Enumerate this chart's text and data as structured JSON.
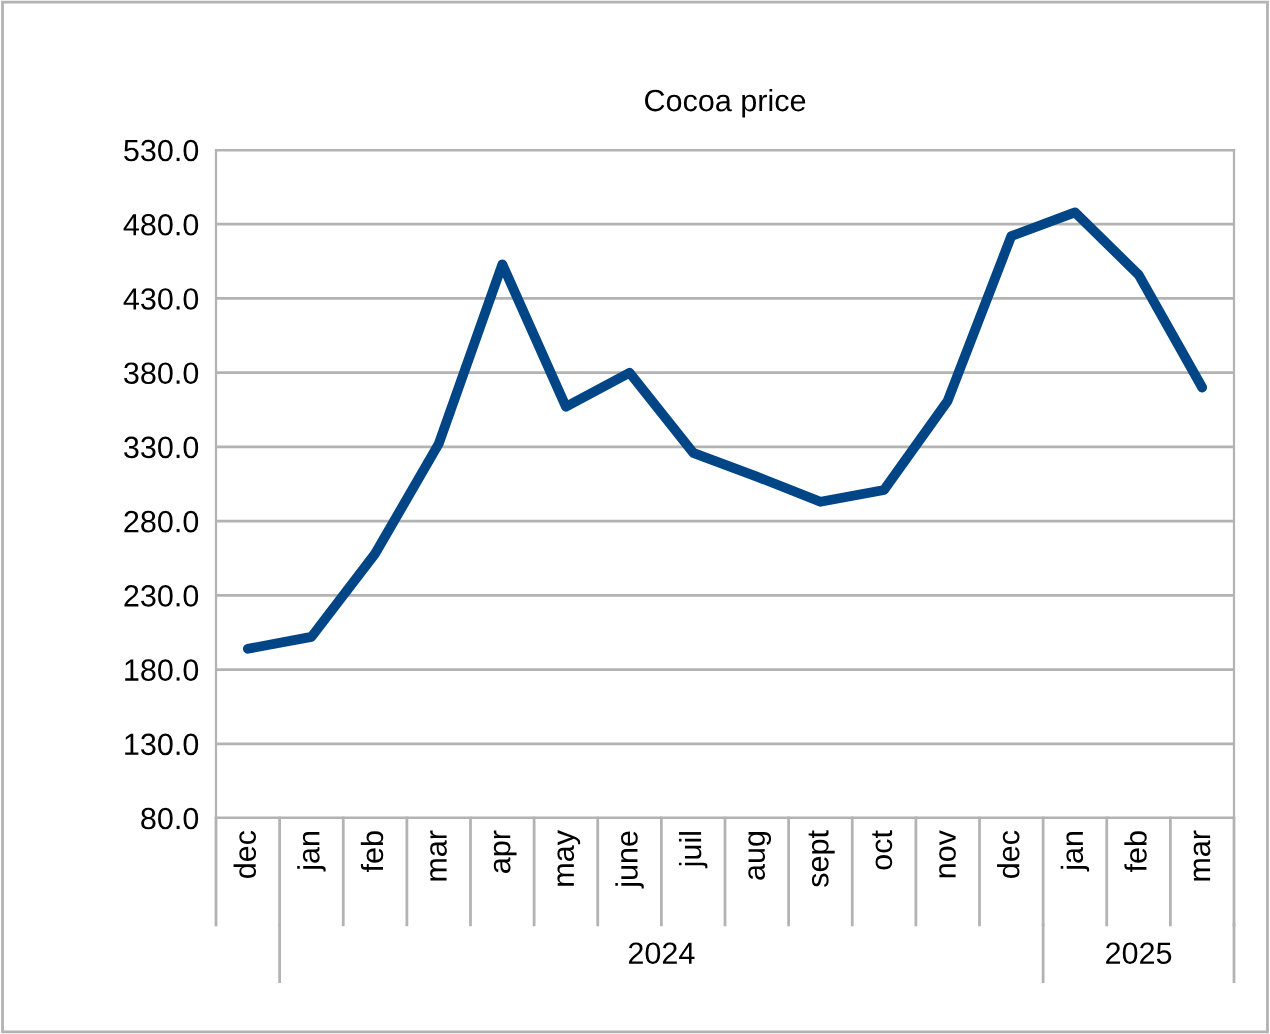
{
  "chart_data": {
    "type": "line",
    "title": "Cocoa price",
    "categories": [
      "dec",
      "jan",
      "feb",
      "mar",
      "apr",
      "may",
      "june",
      "juil",
      "aug",
      "sept",
      "oct",
      "nov",
      "dec",
      "jan",
      "feb",
      "mar"
    ],
    "series": [
      {
        "color": "#004586",
        "values": [
          194,
          202,
          258,
          332,
          453,
          357,
          380,
          326,
          310,
          293,
          301,
          361,
          472,
          488,
          446,
          370
        ]
      }
    ],
    "ylim": [
      80,
      530
    ],
    "yticks": [
      {
        "value": 80,
        "label": "80.0"
      },
      {
        "value": 130,
        "label": "130.0"
      },
      {
        "value": 180,
        "label": "180.0"
      },
      {
        "value": 230,
        "label": "230.0"
      },
      {
        "value": 280,
        "label": "280.0"
      },
      {
        "value": 330,
        "label": "330.0"
      },
      {
        "value": 380,
        "label": "380.0"
      },
      {
        "value": 430,
        "label": "430.0"
      },
      {
        "value": 480,
        "label": "480.0"
      },
      {
        "value": 530,
        "label": "530.0"
      }
    ],
    "grid": "y",
    "legend": false,
    "marker": "none",
    "line_style": "solid",
    "annotations": [
      "2024",
      "2025"
    ]
  }
}
